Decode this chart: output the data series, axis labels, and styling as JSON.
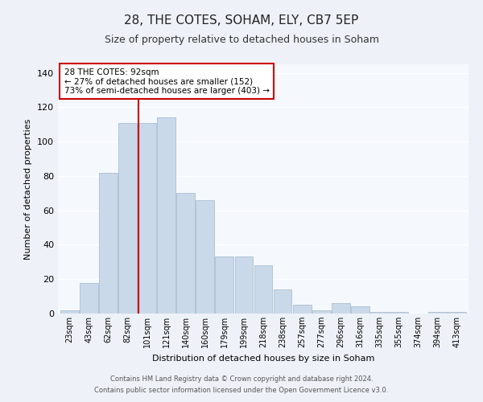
{
  "title1": "28, THE COTES, SOHAM, ELY, CB7 5EP",
  "title2": "Size of property relative to detached houses in Soham",
  "xlabel": "Distribution of detached houses by size in Soham",
  "ylabel": "Number of detached properties",
  "categories": [
    "23sqm",
    "43sqm",
    "62sqm",
    "82sqm",
    "101sqm",
    "121sqm",
    "140sqm",
    "160sqm",
    "179sqm",
    "199sqm",
    "218sqm",
    "238sqm",
    "257sqm",
    "277sqm",
    "296sqm",
    "316sqm",
    "335sqm",
    "355sqm",
    "374sqm",
    "394sqm",
    "413sqm"
  ],
  "values": [
    2,
    18,
    82,
    111,
    111,
    114,
    70,
    66,
    33,
    33,
    28,
    14,
    5,
    2,
    6,
    4,
    1,
    1,
    0,
    1,
    1
  ],
  "bar_color": "#c9d9ea",
  "bar_edge_color": "#aabfcf",
  "vline_color": "#cc0000",
  "annotation_text": "28 THE COTES: 92sqm\n← 27% of detached houses are smaller (152)\n73% of semi-detached houses are larger (403) →",
  "annotation_box_color": "#cc0000",
  "ylim": [
    0,
    145
  ],
  "yticks": [
    0,
    20,
    40,
    60,
    80,
    100,
    120,
    140
  ],
  "footer1": "Contains HM Land Registry data © Crown copyright and database right 2024.",
  "footer2": "Contains public sector information licensed under the Open Government Licence v3.0.",
  "bg_color": "#eef2f8",
  "plot_bg_color": "#f5f8fd",
  "grid_color": "#ffffff",
  "title1_fontsize": 11,
  "title2_fontsize": 9,
  "ylabel_fontsize": 8,
  "xlabel_fontsize": 8,
  "tick_fontsize": 7,
  "footer_fontsize": 6,
  "ann_fontsize": 7.5,
  "vline_pos": 3.55
}
